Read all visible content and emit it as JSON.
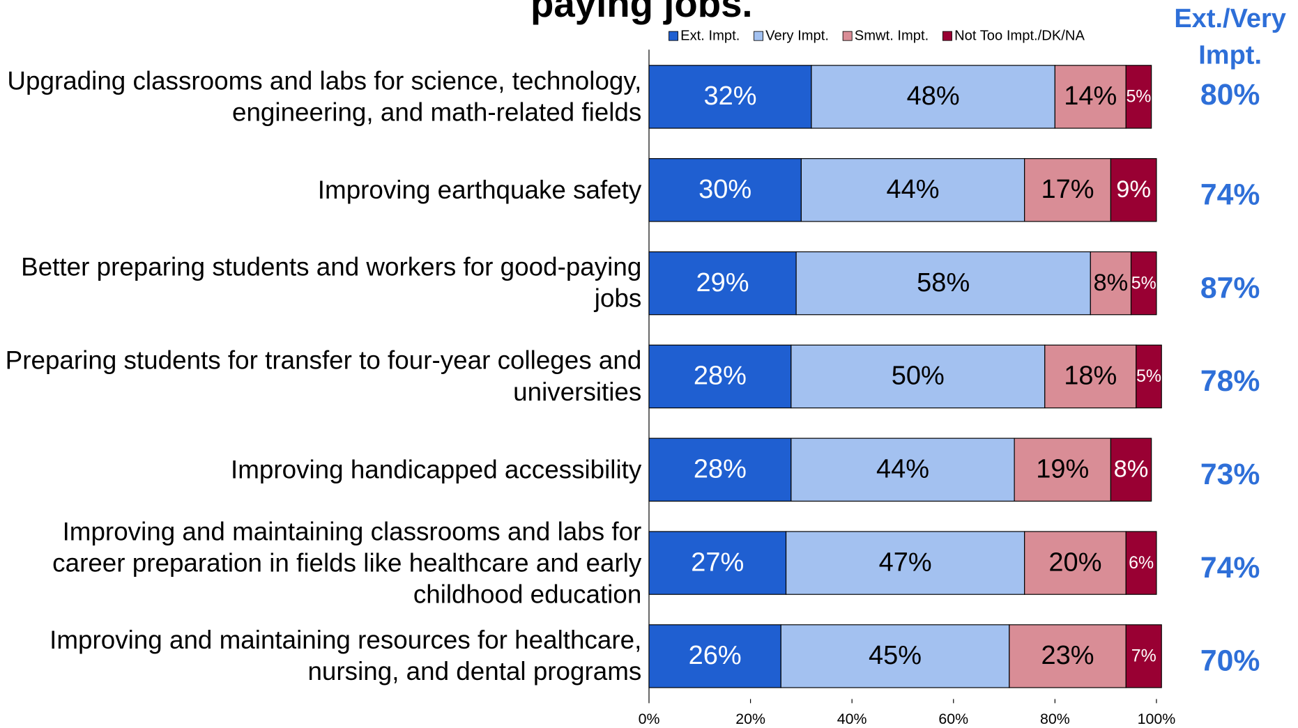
{
  "chart_data": {
    "type": "stacked_barh",
    "title": "paying jobs.",
    "categories": [
      "Upgrading classrooms and labs for science, technology, engineering, and math-related fields",
      "Improving earthquake safety",
      "Better preparing students and workers for good-paying jobs",
      "Preparing students for transfer to four-year colleges and universities",
      "Improving handicapped accessibility",
      "Improving and maintaining classrooms and labs for career preparation in fields like healthcare and early childhood education",
      "Improving and maintaining resources for healthcare, nursing, and dental programs"
    ],
    "series": [
      {
        "name": "Ext. Impt.",
        "color": "#1f5fd1",
        "values": [
          32,
          30,
          29,
          28,
          28,
          27,
          26
        ],
        "value_labels": [
          "32%",
          "30%",
          "29%",
          "28%",
          "28%",
          "27%",
          "26%"
        ]
      },
      {
        "name": "Very Impt.",
        "color": "#a3c1f0",
        "values": [
          48,
          44,
          58,
          50,
          44,
          47,
          45
        ],
        "value_labels": [
          "48%",
          "44%",
          "58%",
          "50%",
          "44%",
          "47%",
          "45%"
        ]
      },
      {
        "name": "Smwt. Impt.",
        "color": "#d98d96",
        "values": [
          14,
          17,
          8,
          18,
          19,
          20,
          23
        ],
        "value_labels": [
          "14%",
          "17%",
          "8%",
          "18%",
          "19%",
          "20%",
          "23%"
        ]
      },
      {
        "name": "Not Too Impt./DK/NA",
        "color": "#990033",
        "values": [
          5,
          9,
          5,
          5,
          8,
          6,
          7
        ],
        "value_labels": [
          "5%",
          "9%",
          "5%",
          "5%",
          "8%",
          "6%",
          "7%"
        ]
      }
    ],
    "totals": {
      "title": "Ext./Very Impt.",
      "color": "#2e6fd8",
      "values": [
        80,
        74,
        87,
        78,
        73,
        74,
        70
      ],
      "value_labels": [
        "80%",
        "74%",
        "87%",
        "78%",
        "73%",
        "74%",
        "70%"
      ]
    },
    "xlim": [
      0,
      100
    ],
    "xticks": [
      {
        "value": 0,
        "label": "0%"
      },
      {
        "value": 20,
        "label": "20%"
      },
      {
        "value": 40,
        "label": "40%"
      },
      {
        "value": 60,
        "label": "60%"
      },
      {
        "value": 80,
        "label": "80%"
      },
      {
        "value": 100,
        "label": "100%"
      }
    ],
    "legend": "top"
  }
}
